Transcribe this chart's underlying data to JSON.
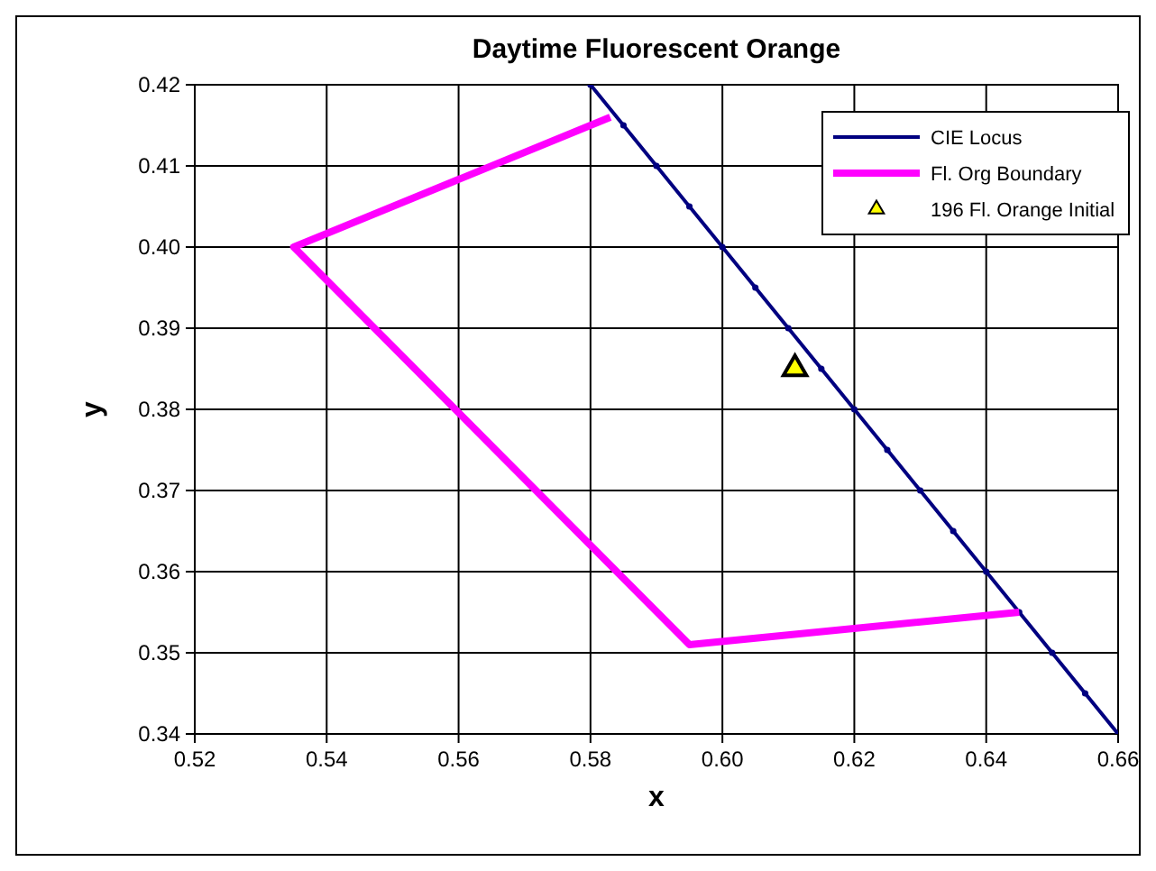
{
  "chart_data": {
    "type": "line",
    "title": "Daytime Fluorescent Orange",
    "xlabel": "x",
    "ylabel": "y",
    "xlim": [
      0.52,
      0.66
    ],
    "xticks": [
      {
        "value": 0.52,
        "label": "0.52"
      },
      {
        "value": 0.54,
        "label": "0.54"
      },
      {
        "value": 0.56,
        "label": "0.56"
      },
      {
        "value": 0.58,
        "label": "0.58"
      },
      {
        "value": 0.6,
        "label": "0.60"
      },
      {
        "value": 0.62,
        "label": "0.62"
      },
      {
        "value": 0.64,
        "label": "0.64"
      },
      {
        "value": 0.66,
        "label": "0.66"
      }
    ],
    "ylim": [
      0.34,
      0.42
    ],
    "yticks": [
      {
        "value": 0.34,
        "label": "0.34"
      },
      {
        "value": 0.35,
        "label": "0.35"
      },
      {
        "value": 0.36,
        "label": "0.36"
      },
      {
        "value": 0.37,
        "label": "0.37"
      },
      {
        "value": 0.38,
        "label": "0.38"
      },
      {
        "value": 0.39,
        "label": "0.39"
      },
      {
        "value": 0.4,
        "label": "0.40"
      },
      {
        "value": 0.41,
        "label": "0.41"
      },
      {
        "value": 0.42,
        "label": "0.42"
      }
    ],
    "grid": true,
    "legend": "top right",
    "series": [
      {
        "name": "CIE Locus",
        "color": "#000080",
        "marker": "circle",
        "x": [
          0.58,
          0.585,
          0.59,
          0.595,
          0.6,
          0.605,
          0.61,
          0.615,
          0.62,
          0.625,
          0.63,
          0.635,
          0.64,
          0.645,
          0.65,
          0.655,
          0.66
        ],
        "values": [
          0.42,
          0.415,
          0.41,
          0.405,
          0.4,
          0.395,
          0.39,
          0.385,
          0.38,
          0.375,
          0.37,
          0.365,
          0.36,
          0.355,
          0.35,
          0.345,
          0.34
        ]
      },
      {
        "name": "Fl. Org Boundary",
        "color": "#ff00ff",
        "marker": "none",
        "x": [
          0.583,
          0.535,
          0.595,
          0.645
        ],
        "values": [
          0.416,
          0.4,
          0.351,
          0.355
        ]
      },
      {
        "name": "196 Fl. Orange Initial",
        "type": "scatter",
        "color": "#ffff00",
        "marker": "triangle",
        "x": [
          0.611
        ],
        "values": [
          0.385
        ]
      }
    ]
  }
}
